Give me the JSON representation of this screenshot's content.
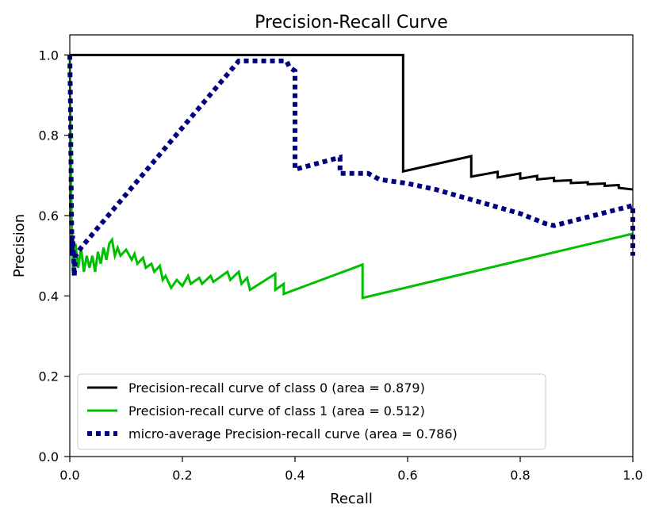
{
  "chart_data": {
    "type": "line",
    "title": "Precision-Recall Curve",
    "xlabel": "Recall",
    "ylabel": "Precision",
    "xlim": [
      0.0,
      1.0
    ],
    "ylim": [
      0.0,
      1.05
    ],
    "xticks": [
      0.0,
      0.2,
      0.4,
      0.6,
      0.8,
      1.0
    ],
    "xtick_labels": [
      "0.0",
      "0.2",
      "0.4",
      "0.6",
      "0.8",
      "1.0"
    ],
    "yticks": [
      0.0,
      0.2,
      0.4,
      0.6,
      0.8,
      1.0
    ],
    "ytick_labels": [
      "0.0",
      "0.2",
      "0.4",
      "0.6",
      "0.8",
      "1.0"
    ],
    "grid": false,
    "legend_position": "lower-left",
    "series": [
      {
        "name": "Precision-recall curve of class 0 (area = 0.879)",
        "color": "#000000",
        "line_style": "solid",
        "points": [
          [
            0.0,
            1.0
          ],
          [
            0.592,
            1.0
          ],
          [
            0.592,
            0.71
          ],
          [
            0.713,
            0.748
          ],
          [
            0.713,
            0.697
          ],
          [
            0.76,
            0.709
          ],
          [
            0.76,
            0.695
          ],
          [
            0.8,
            0.705
          ],
          [
            0.8,
            0.692
          ],
          [
            0.83,
            0.699
          ],
          [
            0.83,
            0.69
          ],
          [
            0.86,
            0.694
          ],
          [
            0.86,
            0.686
          ],
          [
            0.89,
            0.688
          ],
          [
            0.89,
            0.681
          ],
          [
            0.92,
            0.683
          ],
          [
            0.92,
            0.678
          ],
          [
            0.95,
            0.68
          ],
          [
            0.95,
            0.674
          ],
          [
            0.975,
            0.676
          ],
          [
            0.975,
            0.669
          ],
          [
            1.0,
            0.665
          ]
        ]
      },
      {
        "name": "Precision-recall curve of class 1 (area = 0.512)",
        "color": "#00bf00",
        "line_style": "solid",
        "points": [
          [
            0.0,
            1.0
          ],
          [
            0.003,
            0.6
          ],
          [
            0.006,
            0.45
          ],
          [
            0.01,
            0.53
          ],
          [
            0.015,
            0.47
          ],
          [
            0.02,
            0.52
          ],
          [
            0.025,
            0.46
          ],
          [
            0.03,
            0.5
          ],
          [
            0.035,
            0.47
          ],
          [
            0.04,
            0.5
          ],
          [
            0.045,
            0.46
          ],
          [
            0.05,
            0.51
          ],
          [
            0.055,
            0.48
          ],
          [
            0.06,
            0.52
          ],
          [
            0.065,
            0.49
          ],
          [
            0.07,
            0.53
          ],
          [
            0.075,
            0.54
          ],
          [
            0.08,
            0.5
          ],
          [
            0.085,
            0.52
          ],
          [
            0.09,
            0.5
          ],
          [
            0.1,
            0.515
          ],
          [
            0.11,
            0.49
          ],
          [
            0.115,
            0.505
          ],
          [
            0.12,
            0.48
          ],
          [
            0.13,
            0.495
          ],
          [
            0.135,
            0.47
          ],
          [
            0.145,
            0.48
          ],
          [
            0.15,
            0.46
          ],
          [
            0.16,
            0.475
          ],
          [
            0.165,
            0.44
          ],
          [
            0.17,
            0.45
          ],
          [
            0.18,
            0.42
          ],
          [
            0.19,
            0.44
          ],
          [
            0.2,
            0.425
          ],
          [
            0.21,
            0.45
          ],
          [
            0.215,
            0.43
          ],
          [
            0.23,
            0.445
          ],
          [
            0.235,
            0.43
          ],
          [
            0.25,
            0.45
          ],
          [
            0.255,
            0.435
          ],
          [
            0.28,
            0.46
          ],
          [
            0.285,
            0.44
          ],
          [
            0.3,
            0.46
          ],
          [
            0.305,
            0.43
          ],
          [
            0.315,
            0.445
          ],
          [
            0.32,
            0.415
          ],
          [
            0.365,
            0.455
          ],
          [
            0.365,
            0.415
          ],
          [
            0.38,
            0.43
          ],
          [
            0.38,
            0.405
          ],
          [
            0.52,
            0.478
          ],
          [
            0.52,
            0.395
          ],
          [
            1.0,
            0.555
          ]
        ]
      },
      {
        "name": "micro-average Precision-recall curve (area = 0.786)",
        "color": "#000080",
        "line_style": "dotted",
        "points": [
          [
            0.0,
            1.0
          ],
          [
            0.001,
            0.9
          ],
          [
            0.002,
            0.75
          ],
          [
            0.003,
            0.6
          ],
          [
            0.004,
            0.5
          ],
          [
            0.005,
            0.55
          ],
          [
            0.008,
            0.45
          ],
          [
            0.01,
            0.5
          ],
          [
            0.02,
            0.52
          ],
          [
            0.3,
            0.985
          ],
          [
            0.345,
            0.985
          ],
          [
            0.345,
            0.985
          ],
          [
            0.385,
            0.985
          ],
          [
            0.39,
            0.97
          ],
          [
            0.4,
            0.96
          ],
          [
            0.4,
            0.715
          ],
          [
            0.44,
            0.73
          ],
          [
            0.48,
            0.745
          ],
          [
            0.48,
            0.705
          ],
          [
            0.53,
            0.705
          ],
          [
            0.55,
            0.69
          ],
          [
            0.6,
            0.68
          ],
          [
            0.65,
            0.665
          ],
          [
            0.7,
            0.645
          ],
          [
            0.75,
            0.625
          ],
          [
            0.8,
            0.605
          ],
          [
            0.845,
            0.58
          ],
          [
            0.86,
            0.575
          ],
          [
            1.0,
            0.625
          ],
          [
            1.0,
            0.5
          ]
        ]
      }
    ]
  }
}
